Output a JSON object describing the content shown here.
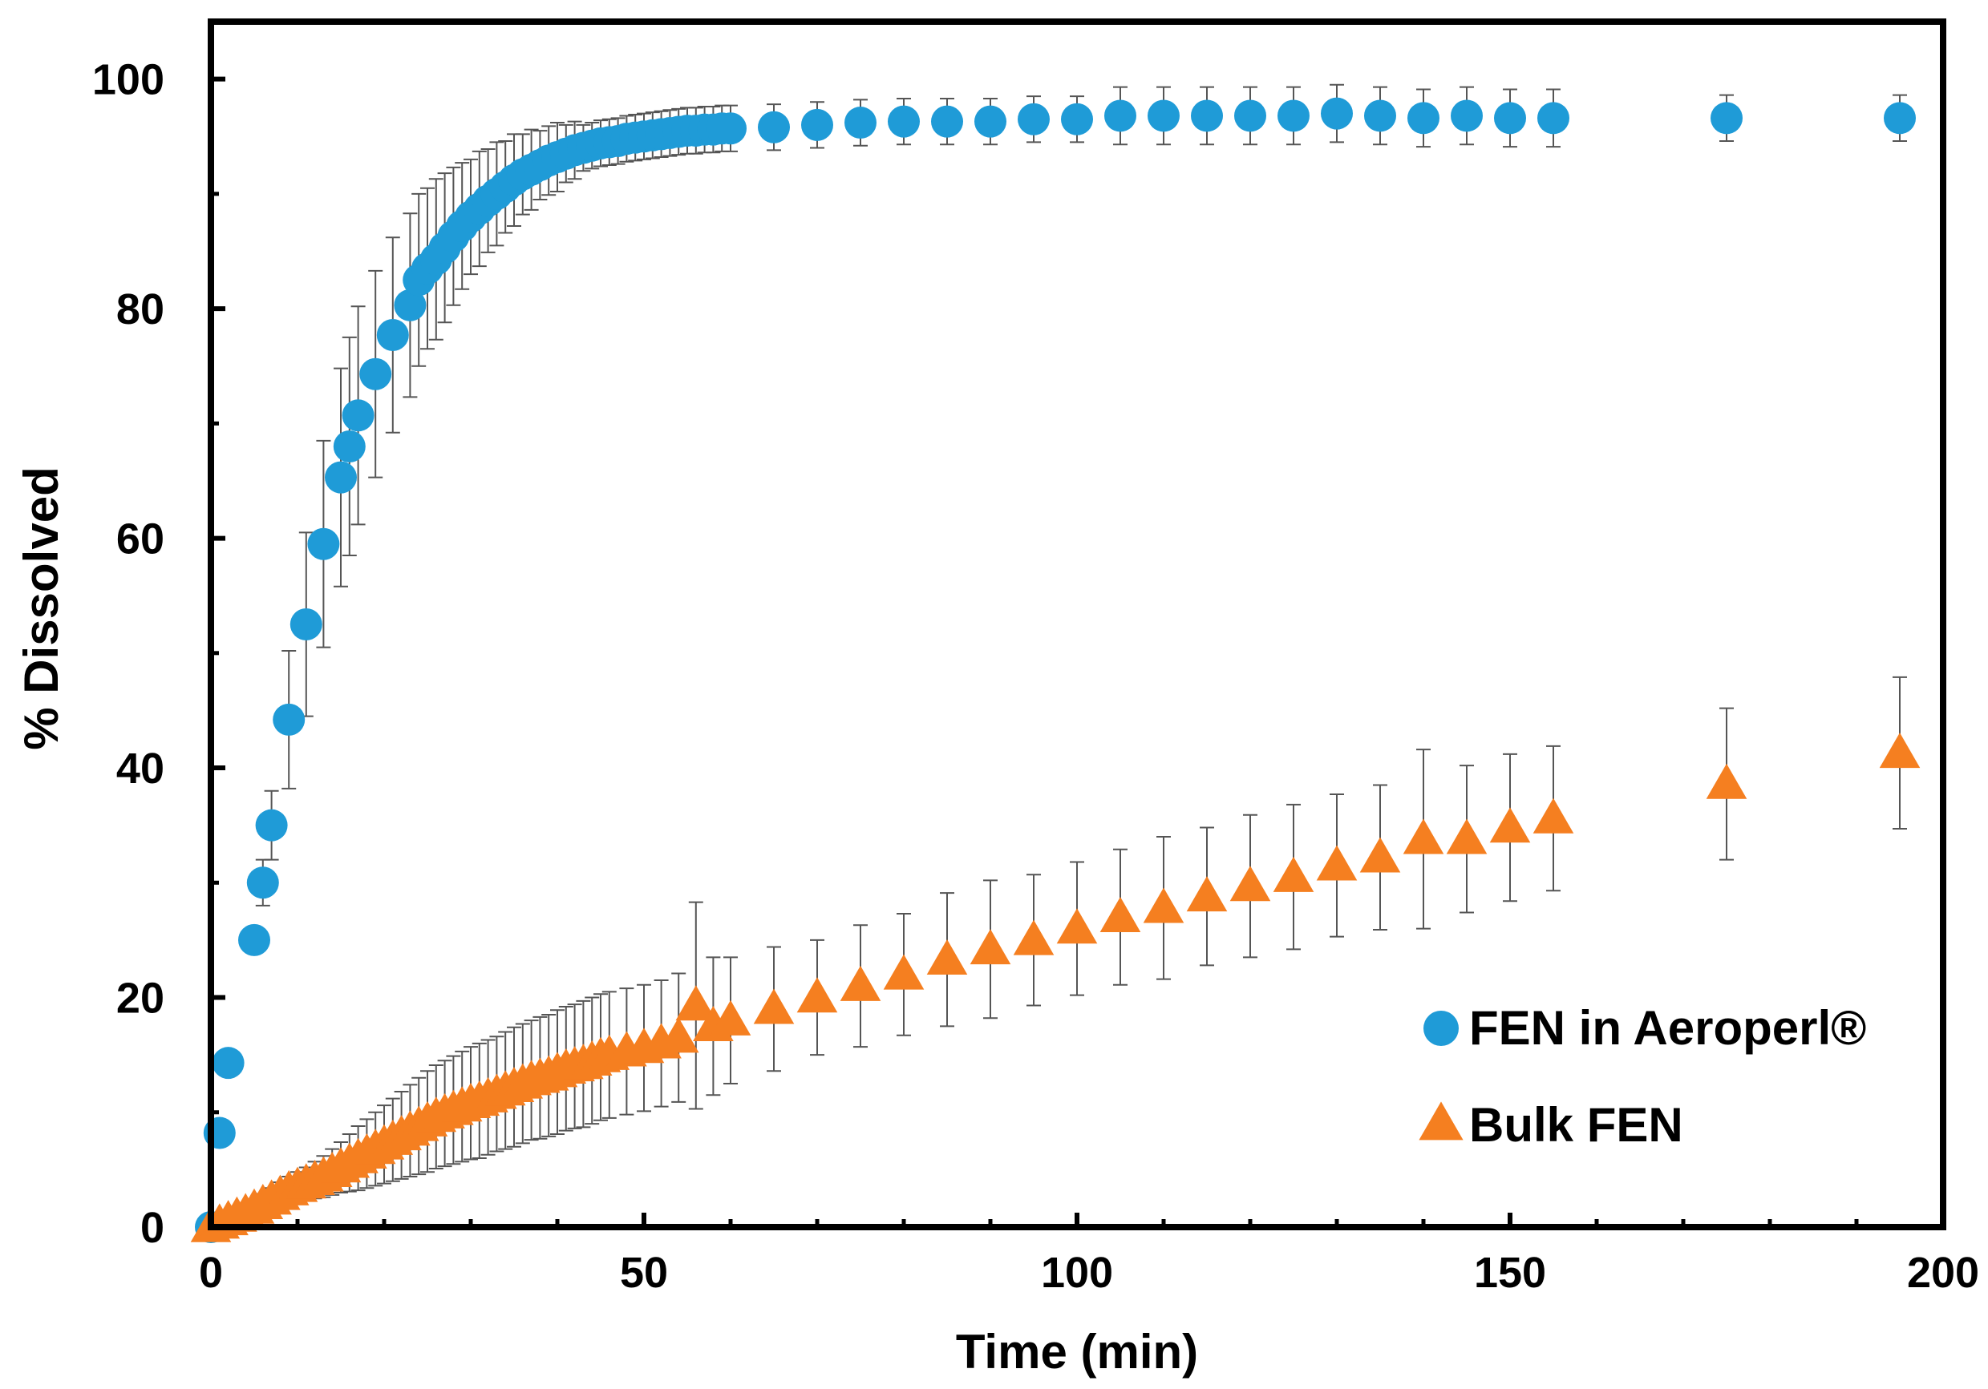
{
  "chart_data": {
    "type": "scatter",
    "title": "",
    "xlabel": "Time (min)",
    "ylabel": "% Dissolved",
    "xlim": [
      0,
      200
    ],
    "ylim": [
      0,
      105
    ],
    "xticks": [
      0,
      50,
      100,
      150,
      200
    ],
    "yticks": [
      0,
      20,
      40,
      60,
      80,
      100
    ],
    "x_minor_step": 10,
    "y_minor_step": 10,
    "grid": false,
    "legend_position": "bottom-right",
    "colors": {
      "aeroperl": "#1f9bd7",
      "bulk": "#f57f20",
      "error_bar": "#555555",
      "frame": "#000000"
    },
    "series": [
      {
        "name": "FEN in Aeroperl®",
        "marker": "circle",
        "color": "#1f9bd7",
        "x": [
          0,
          1,
          2,
          5,
          6,
          7,
          9,
          11,
          13,
          15,
          16,
          17,
          19,
          21,
          23,
          24,
          25,
          26,
          27,
          28,
          29,
          30,
          31,
          32,
          33,
          34,
          35,
          36,
          37,
          38,
          39,
          40,
          41,
          42,
          43,
          44,
          45,
          46,
          47,
          48,
          49,
          50,
          51,
          52,
          53,
          54,
          55,
          56,
          57,
          58,
          59,
          60,
          65,
          70,
          75,
          80,
          85,
          90,
          95,
          100,
          105,
          110,
          115,
          120,
          125,
          130,
          135,
          140,
          145,
          150,
          155,
          175,
          195
        ],
        "y": [
          0,
          8.2,
          14.3,
          25,
          30,
          35,
          44.2,
          52.5,
          59.5,
          65.3,
          68,
          70.7,
          74.3,
          77.7,
          80.3,
          82.5,
          83.5,
          84.3,
          85.3,
          86.3,
          87.2,
          88,
          88.7,
          89.4,
          90,
          90.6,
          91.2,
          91.7,
          92.1,
          92.5,
          92.9,
          93.2,
          93.5,
          93.8,
          94,
          94.2,
          94.4,
          94.5,
          94.6,
          94.8,
          94.9,
          95,
          95.1,
          95.2,
          95.3,
          95.4,
          95.5,
          95.5,
          95.6,
          95.6,
          95.7,
          95.7,
          95.8,
          96,
          96.2,
          96.3,
          96.3,
          96.3,
          96.5,
          96.5,
          96.8,
          96.8,
          96.8,
          96.8,
          96.8,
          97,
          96.8,
          96.6,
          96.8,
          96.6,
          96.6,
          96.6,
          96.6
        ],
        "error": [
          0.5,
          0.5,
          1,
          1,
          2,
          3,
          6,
          8,
          9,
          9.5,
          9.5,
          9.5,
          9,
          8.5,
          8,
          7.5,
          7,
          7,
          6.5,
          6,
          5.5,
          5,
          5,
          4.5,
          4.5,
          4,
          4,
          3.5,
          3.5,
          3,
          3,
          3,
          2.5,
          2.5,
          2,
          2,
          2,
          2,
          2,
          2,
          2,
          2,
          2,
          2,
          2,
          2,
          2,
          2,
          2,
          2,
          2,
          2,
          2,
          2,
          2,
          2,
          2,
          2,
          2,
          2,
          2.5,
          2.5,
          2.5,
          2.5,
          2.5,
          2.5,
          2.5,
          2.5,
          2.5,
          2.5,
          2.5,
          2,
          2
        ]
      },
      {
        "name": "Bulk FEN",
        "marker": "triangle",
        "color": "#f57f20",
        "x": [
          0,
          1,
          2,
          3,
          4,
          5,
          6,
          7,
          8,
          9,
          10,
          11,
          12,
          13,
          14,
          15,
          16,
          17,
          18,
          19,
          20,
          21,
          22,
          23,
          24,
          25,
          26,
          27,
          28,
          29,
          30,
          31,
          32,
          33,
          34,
          35,
          36,
          37,
          38,
          39,
          40,
          41,
          42,
          43,
          44,
          45,
          46,
          48,
          50,
          52,
          54,
          56,
          58,
          60,
          65,
          70,
          75,
          80,
          85,
          90,
          95,
          100,
          105,
          110,
          115,
          120,
          125,
          130,
          135,
          140,
          145,
          150,
          155,
          175,
          195
        ],
        "y": [
          0,
          0.3,
          0.6,
          0.9,
          1.2,
          1.6,
          2,
          2.4,
          2.8,
          3.2,
          3.5,
          3.8,
          4.1,
          4.4,
          4.8,
          5.2,
          5.6,
          6,
          6.4,
          6.8,
          7.2,
          7.6,
          8,
          8.4,
          8.8,
          9.2,
          9.6,
          9.9,
          10.2,
          10.5,
          10.8,
          11,
          11.3,
          11.6,
          11.9,
          12.2,
          12.5,
          12.8,
          13,
          13.2,
          13.5,
          13.8,
          14,
          14.2,
          14.5,
          14.8,
          15,
          15.3,
          15.6,
          16,
          16.5,
          19.3,
          17.5,
          18,
          19,
          20,
          21,
          22,
          23.3,
          24.2,
          25,
          26,
          27,
          27.8,
          28.8,
          29.7,
          30.5,
          31.5,
          32.2,
          33.8,
          33.8,
          34.8,
          35.6,
          38.6,
          41.3
        ],
        "error": [
          0.2,
          0.3,
          0.5,
          0.6,
          0.7,
          0.8,
          0.9,
          1,
          1.1,
          1.2,
          1.3,
          1.4,
          1.6,
          1.8,
          2,
          2.2,
          2.5,
          2.8,
          3,
          3.2,
          3.4,
          3.6,
          3.8,
          4,
          4.2,
          4.4,
          4.5,
          4.6,
          4.7,
          4.8,
          4.9,
          5,
          5,
          5,
          5.1,
          5.2,
          5.2,
          5.2,
          5.3,
          5.3,
          5.4,
          5.4,
          5.4,
          5.5,
          5.5,
          5.5,
          5.5,
          5.5,
          5.5,
          5.5,
          5.6,
          9,
          6,
          5.5,
          5.4,
          5,
          5.3,
          5.3,
          5.8,
          6,
          5.7,
          5.8,
          5.9,
          6.2,
          6,
          6.2,
          6.3,
          6.2,
          6.3,
          7.8,
          6.4,
          6.4,
          6.3,
          6.6,
          6.6
        ]
      }
    ]
  }
}
